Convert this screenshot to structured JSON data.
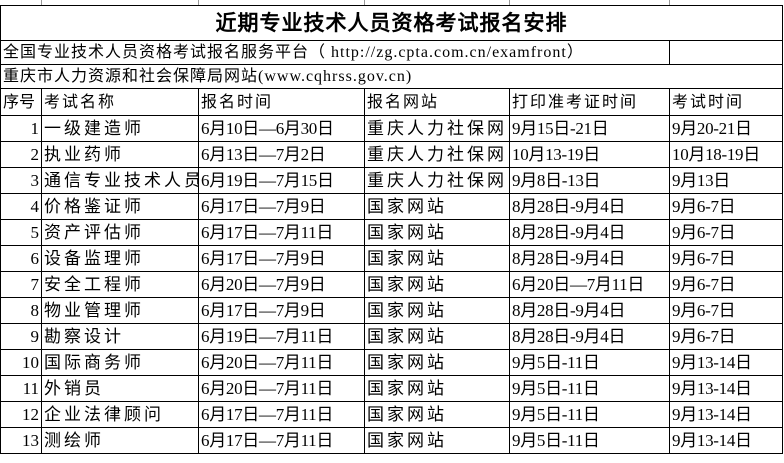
{
  "title": "近期专业技术人员资格考试报名安排",
  "national_site": "全国专业技术人员资格考试报名服务平台（ http://zg.cpta.com.cn/examfront）",
  "local_site": "重庆市人力资源和社会保障局网站(www.cqhrss.gov.cn)",
  "headers": [
    "序号",
    "考试名称",
    "报名时间",
    "报名网站",
    "打印准考证时间",
    "考试时间"
  ],
  "rows": [
    [
      "1",
      "一级建造师",
      "6月10日—6月30日",
      "重庆人力社保网",
      "9月15日-21日",
      "9月20-21日"
    ],
    [
      "2",
      "执业药师",
      "6月13日—7月2日",
      "重庆人力社保网",
      "10月13-19日",
      "10月18-19日"
    ],
    [
      "3",
      "通信专业技术人员",
      "6月19日—7月15日",
      "重庆人力社保网",
      "9月8日-13日",
      "9月13日"
    ],
    [
      "4",
      "价格鉴证师",
      "6月17日—7月9日",
      "国家网站",
      "8月28日-9月4日",
      "9月6-7日"
    ],
    [
      "5",
      "资产评估师",
      "6月17日—7月11日",
      "国家网站",
      "8月28日-9月4日",
      "9月6-7日"
    ],
    [
      "6",
      "设备监理师",
      "6月17日—7月9日",
      "国家网站",
      "8月28日-9月4日",
      "9月6-7日"
    ],
    [
      "7",
      "安全工程师",
      "6月20日—7月9日",
      "国家网站",
      "6月20日—7月11日",
      "9月6-7日"
    ],
    [
      "8",
      "物业管理师",
      "6月17日—7月9日",
      "国家网站",
      "8月28日-9月4日",
      "9月6-7日"
    ],
    [
      "9",
      "勘察设计",
      "6月19日—7月11日",
      "国家网站",
      "8月28日-9月4日",
      "9月6-7日"
    ],
    [
      "10",
      "国际商务师",
      "6月20日—7月11日",
      "国家网站",
      "9月5日-11日",
      "9月13-14日"
    ],
    [
      "11",
      "外销员",
      "6月20日—7月11日",
      "国家网站",
      "9月5日-11日",
      "9月13-14日"
    ],
    [
      "12",
      "企业法律顾问",
      "6月17日—7月11日",
      "国家网站",
      "9月5日-11日",
      "9月13-14日"
    ],
    [
      "13",
      "测绘师",
      "6月17日—7月11日",
      "国家网站",
      "9月5日-11日",
      "9月13-14日"
    ]
  ]
}
